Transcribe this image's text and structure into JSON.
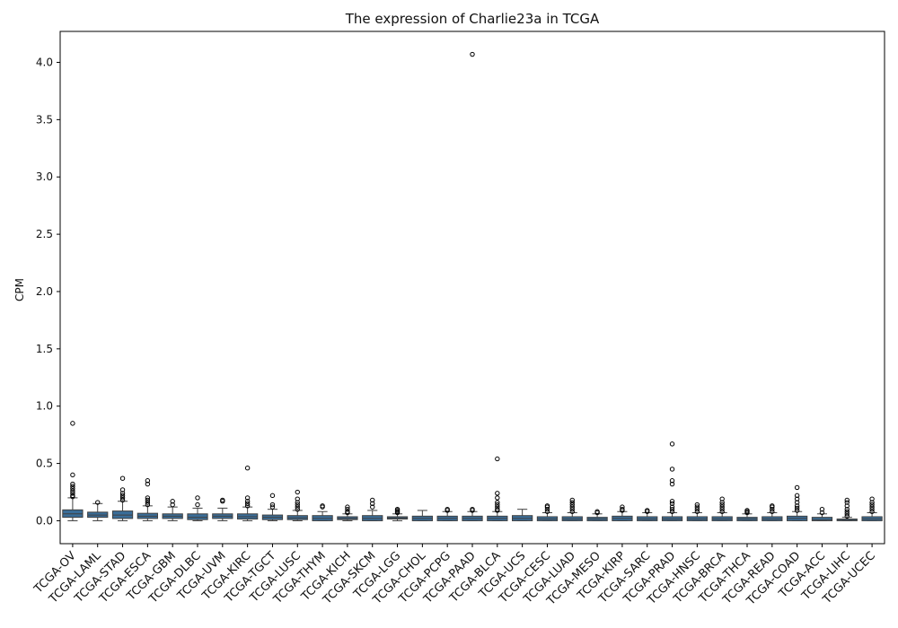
{
  "chart_data": {
    "type": "box",
    "title": "The expression of Charlie23a in TCGA",
    "xlabel": "",
    "ylabel": "CPM",
    "ylim": [
      -0.2,
      4.27
    ],
    "yticks": [
      0.0,
      0.5,
      1.0,
      1.5,
      2.0,
      2.5,
      3.0,
      3.5,
      4.0
    ],
    "ytick_labels": [
      "0.0",
      "0.5",
      "1.0",
      "1.5",
      "2.0",
      "2.5",
      "3.0",
      "3.5",
      "4.0"
    ],
    "box_color": "#3a6d98",
    "categories": [
      "TCGA-OV",
      "TCGA-LAML",
      "TCGA-STAD",
      "TCGA-ESCA",
      "TCGA-GBM",
      "TCGA-DLBC",
      "TCGA-UVM",
      "TCGA-KIRC",
      "TCGA-TGCT",
      "TCGA-LUSC",
      "TCGA-THYM",
      "TCGA-KICH",
      "TCGA-SKCM",
      "TCGA-LGG",
      "TCGA-CHOL",
      "TCGA-PCPG",
      "TCGA-PAAD",
      "TCGA-BLCA",
      "TCGA-UCS",
      "TCGA-CESC",
      "TCGA-LUAD",
      "TCGA-MESO",
      "TCGA-KIRP",
      "TCGA-SARC",
      "TCGA-PRAD",
      "TCGA-HNSC",
      "TCGA-BRCA",
      "TCGA-THCA",
      "TCGA-READ",
      "TCGA-COAD",
      "TCGA-ACC",
      "TCGA-LIHC",
      "TCGA-UCEC"
    ],
    "boxes": [
      {
        "whislo": 0.0,
        "q1": 0.03,
        "med": 0.06,
        "q3": 0.095,
        "whishi": 0.2,
        "fliers": [
          0.21,
          0.22,
          0.24,
          0.26,
          0.28,
          0.3,
          0.32,
          0.4,
          0.85
        ]
      },
      {
        "whislo": 0.0,
        "q1": 0.03,
        "med": 0.05,
        "q3": 0.075,
        "whishi": 0.15,
        "fliers": [
          0.16
        ]
      },
      {
        "whislo": 0.0,
        "q1": 0.02,
        "med": 0.05,
        "q3": 0.085,
        "whishi": 0.17,
        "fliers": [
          0.18,
          0.2,
          0.22,
          0.24,
          0.27,
          0.37
        ]
      },
      {
        "whislo": 0.0,
        "q1": 0.02,
        "med": 0.04,
        "q3": 0.065,
        "whishi": 0.13,
        "fliers": [
          0.14,
          0.16,
          0.18,
          0.2,
          0.32,
          0.35
        ]
      },
      {
        "whislo": 0.0,
        "q1": 0.02,
        "med": 0.04,
        "q3": 0.06,
        "whishi": 0.12,
        "fliers": [
          0.14,
          0.17
        ]
      },
      {
        "whislo": 0.0,
        "q1": 0.01,
        "med": 0.03,
        "q3": 0.06,
        "whishi": 0.11,
        "fliers": [
          0.14,
          0.2
        ]
      },
      {
        "whislo": 0.0,
        "q1": 0.02,
        "med": 0.04,
        "q3": 0.06,
        "whishi": 0.11,
        "fliers": [
          0.17,
          0.18
        ]
      },
      {
        "whislo": 0.0,
        "q1": 0.015,
        "med": 0.035,
        "q3": 0.06,
        "whishi": 0.12,
        "fliers": [
          0.13,
          0.15,
          0.17,
          0.2,
          0.46
        ]
      },
      {
        "whislo": 0.0,
        "q1": 0.01,
        "med": 0.03,
        "q3": 0.05,
        "whishi": 0.1,
        "fliers": [
          0.12,
          0.14,
          0.22
        ]
      },
      {
        "whislo": 0.0,
        "q1": 0.01,
        "med": 0.025,
        "q3": 0.045,
        "whishi": 0.09,
        "fliers": [
          0.1,
          0.12,
          0.14,
          0.16,
          0.19,
          0.25
        ]
      },
      {
        "whislo": 0.0,
        "q1": 0.0,
        "med": 0.02,
        "q3": 0.045,
        "whishi": 0.08,
        "fliers": [
          0.12,
          0.13
        ]
      },
      {
        "whislo": 0.0,
        "q1": 0.01,
        "med": 0.02,
        "q3": 0.035,
        "whishi": 0.06,
        "fliers": [
          0.07,
          0.08,
          0.1,
          0.12
        ]
      },
      {
        "whislo": 0.0,
        "q1": 0.0,
        "med": 0.02,
        "q3": 0.045,
        "whishi": 0.09,
        "fliers": [
          0.12,
          0.15,
          0.18
        ]
      },
      {
        "whislo": 0.0,
        "q1": 0.015,
        "med": 0.025,
        "q3": 0.035,
        "whishi": 0.06,
        "fliers": [
          0.07,
          0.08,
          0.09,
          0.1
        ]
      },
      {
        "whislo": 0.0,
        "q1": 0.0,
        "med": 0.02,
        "q3": 0.04,
        "whishi": 0.09,
        "fliers": []
      },
      {
        "whislo": 0.0,
        "q1": 0.0,
        "med": 0.02,
        "q3": 0.04,
        "whishi": 0.08,
        "fliers": [
          0.09,
          0.1
        ]
      },
      {
        "whislo": 0.0,
        "q1": 0.0,
        "med": 0.02,
        "q3": 0.04,
        "whishi": 0.08,
        "fliers": [
          0.09,
          0.1,
          4.07
        ]
      },
      {
        "whislo": 0.0,
        "q1": 0.0,
        "med": 0.02,
        "q3": 0.04,
        "whishi": 0.08,
        "fliers": [
          0.09,
          0.1,
          0.12,
          0.14,
          0.16,
          0.2,
          0.24,
          0.54
        ]
      },
      {
        "whislo": 0.0,
        "q1": 0.0,
        "med": 0.02,
        "q3": 0.045,
        "whishi": 0.1,
        "fliers": []
      },
      {
        "whislo": 0.0,
        "q1": 0.0,
        "med": 0.015,
        "q3": 0.035,
        "whishi": 0.07,
        "fliers": [
          0.08,
          0.1,
          0.12,
          0.13
        ]
      },
      {
        "whislo": 0.0,
        "q1": 0.0,
        "med": 0.015,
        "q3": 0.035,
        "whishi": 0.07,
        "fliers": [
          0.08,
          0.1,
          0.12,
          0.14,
          0.16,
          0.18
        ]
      },
      {
        "whislo": 0.0,
        "q1": 0.0,
        "med": 0.015,
        "q3": 0.03,
        "whishi": 0.06,
        "fliers": [
          0.07,
          0.08
        ]
      },
      {
        "whislo": 0.0,
        "q1": 0.0,
        "med": 0.02,
        "q3": 0.04,
        "whishi": 0.08,
        "fliers": [
          0.09,
          0.1,
          0.12
        ]
      },
      {
        "whislo": 0.0,
        "q1": 0.0,
        "med": 0.015,
        "q3": 0.035,
        "whishi": 0.07,
        "fliers": [
          0.08,
          0.09
        ]
      },
      {
        "whislo": 0.0,
        "q1": 0.0,
        "med": 0.015,
        "q3": 0.035,
        "whishi": 0.07,
        "fliers": [
          0.08,
          0.1,
          0.12,
          0.15,
          0.17,
          0.32,
          0.35,
          0.45,
          0.67
        ]
      },
      {
        "whislo": 0.0,
        "q1": 0.0,
        "med": 0.015,
        "q3": 0.035,
        "whishi": 0.07,
        "fliers": [
          0.08,
          0.1,
          0.12,
          0.14
        ]
      },
      {
        "whislo": 0.0,
        "q1": 0.0,
        "med": 0.015,
        "q3": 0.035,
        "whishi": 0.07,
        "fliers": [
          0.08,
          0.1,
          0.12,
          0.14,
          0.16,
          0.19
        ]
      },
      {
        "whislo": 0.0,
        "q1": 0.0,
        "med": 0.015,
        "q3": 0.03,
        "whishi": 0.06,
        "fliers": [
          0.07,
          0.08,
          0.09
        ]
      },
      {
        "whislo": 0.0,
        "q1": 0.0,
        "med": 0.015,
        "q3": 0.035,
        "whishi": 0.07,
        "fliers": [
          0.08,
          0.1,
          0.12,
          0.13
        ]
      },
      {
        "whislo": 0.0,
        "q1": 0.0,
        "med": 0.02,
        "q3": 0.04,
        "whishi": 0.08,
        "fliers": [
          0.09,
          0.11,
          0.13,
          0.16,
          0.19,
          0.22,
          0.29
        ]
      },
      {
        "whislo": 0.0,
        "q1": 0.0,
        "med": 0.01,
        "q3": 0.03,
        "whishi": 0.06,
        "fliers": [
          0.07,
          0.1
        ]
      },
      {
        "whislo": 0.0,
        "q1": 0.0,
        "med": 0.005,
        "q3": 0.015,
        "whishi": 0.03,
        "fliers": [
          0.04,
          0.06,
          0.08,
          0.1,
          0.13,
          0.16,
          0.18
        ]
      },
      {
        "whislo": 0.0,
        "q1": 0.0,
        "med": 0.015,
        "q3": 0.035,
        "whishi": 0.07,
        "fliers": [
          0.08,
          0.1,
          0.12,
          0.14,
          0.16,
          0.19
        ]
      }
    ]
  }
}
